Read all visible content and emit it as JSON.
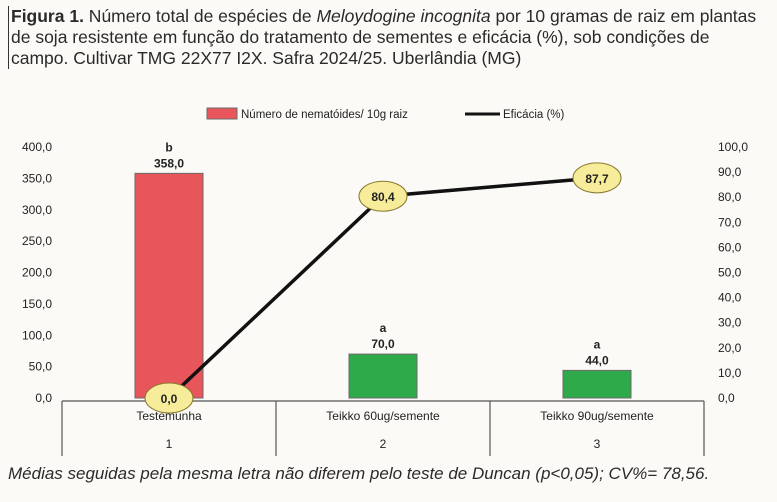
{
  "caption": {
    "figure_label": "Figura 1.",
    "text_before_species": " Número total de espécies de ",
    "species": "Meloydogine incognita",
    "text_after_species": " por 10 gramas de raiz em plantas de soja resistente em função do tratamento de sementes e eficácia (%), sob condições de campo. Cultivar TMG 22X77 I2X. Safra 2024/25. Uberlândia (MG)"
  },
  "footnote": "Médias seguidas pela mesma letra não diferem pelo teste de Duncan (p<0,05); CV%= 78,56.",
  "colors": {
    "bar_1": "#e8555a",
    "bar_2": "#2eaa4a",
    "bar_3": "#2eaa4a",
    "line": "#111111",
    "marker_fill": "#f6ec9a",
    "marker_stroke": "#8a7a30"
  },
  "chart_data": {
    "type": "bar",
    "categories": [
      "Testemunha",
      "Teikko 60ug/semente",
      "Teikko 90ug/semente"
    ],
    "category_numbers": [
      "1",
      "2",
      "3"
    ],
    "series": [
      {
        "name": "Número de nematóides/ 10g raiz",
        "type": "bar",
        "axis": "left",
        "values": [
          358.0,
          70.0,
          44.0
        ],
        "value_labels": [
          "358,0",
          "70,0",
          "44,0"
        ],
        "letters": [
          "b",
          "a",
          "a"
        ]
      },
      {
        "name": "Eficácia (%)",
        "type": "line",
        "axis": "right",
        "values": [
          0.0,
          80.4,
          87.7
        ],
        "value_labels": [
          "0,0",
          "80,4",
          "87,7"
        ]
      }
    ],
    "ylim_left": [
      0,
      400
    ],
    "yticks_left": [
      "0,0",
      "50,0",
      "100,0",
      "150,0",
      "200,0",
      "250,0",
      "300,0",
      "350,0",
      "400,0"
    ],
    "ylim_right": [
      0,
      100
    ],
    "yticks_right": [
      "0,0",
      "10,0",
      "20,0",
      "30,0",
      "40,0",
      "50,0",
      "60,0",
      "70,0",
      "80,0",
      "90,0",
      "100,0"
    ],
    "legend_position": "top-center",
    "grid": false
  }
}
